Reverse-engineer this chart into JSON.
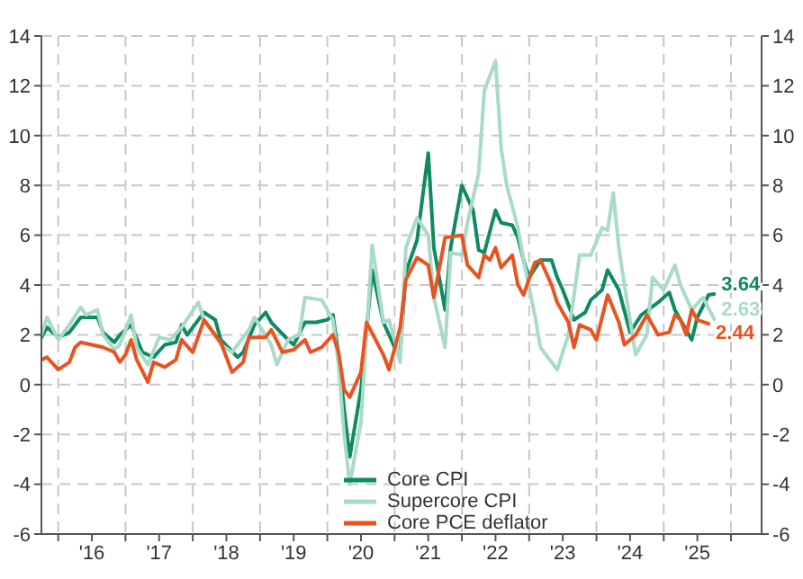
{
  "chart_data": {
    "type": "line",
    "xlim": [
      "2015-10-01",
      "2026-06-15"
    ],
    "xticks": [
      {
        "value": "2016-01-01",
        "label": null
      },
      {
        "value": "2016-07-01",
        "label": "'16"
      },
      {
        "value": "2017-01-01",
        "label": null
      },
      {
        "value": "2017-07-01",
        "label": "'17"
      },
      {
        "value": "2018-01-01",
        "label": null
      },
      {
        "value": "2018-07-01",
        "label": "'18"
      },
      {
        "value": "2019-01-01",
        "label": null
      },
      {
        "value": "2019-07-01",
        "label": "'19"
      },
      {
        "value": "2020-01-01",
        "label": null
      },
      {
        "value": "2020-07-01",
        "label": "'20"
      },
      {
        "value": "2021-01-01",
        "label": null
      },
      {
        "value": "2021-07-01",
        "label": "'21"
      },
      {
        "value": "2022-01-01",
        "label": null
      },
      {
        "value": "2022-07-01",
        "label": "'22"
      },
      {
        "value": "2023-01-01",
        "label": null
      },
      {
        "value": "2023-07-01",
        "label": "'23"
      },
      {
        "value": "2024-01-01",
        "label": null
      },
      {
        "value": "2024-07-01",
        "label": "'24"
      },
      {
        "value": "2025-01-01",
        "label": null
      },
      {
        "value": "2025-07-01",
        "label": "'25"
      },
      {
        "value": "2026-01-01",
        "label": null
      }
    ],
    "ylim": [
      -6,
      14
    ],
    "yticks": [
      -6,
      -4,
      -2,
      0,
      2,
      4,
      6,
      8,
      10,
      12,
      14
    ],
    "y2lim": [
      -6,
      14
    ],
    "y2ticks": [
      -6,
      -4,
      -2,
      0,
      2,
      4,
      6,
      8,
      10,
      12,
      14
    ],
    "grid": true,
    "legend": "bottom right",
    "marker": "none",
    "line_style": "solid",
    "series": [
      {
        "name": "Core CPI",
        "color": "#0f8a62",
        "x": [
          "2015-10",
          "2015-11",
          "2016-01",
          "2016-03",
          "2016-05",
          "2016-08",
          "2016-09",
          "2016-11",
          "2016-12",
          "2017-02",
          "2017-04",
          "2017-06",
          "2017-08",
          "2017-10",
          "2017-11",
          "2017-12",
          "2018-03",
          "2018-05",
          "2018-06",
          "2018-09",
          "2018-10",
          "2018-12",
          "2019-02",
          "2019-03",
          "2019-06",
          "2019-07",
          "2019-09",
          "2019-11",
          "2020-01",
          "2020-02",
          "2020-03",
          "2020-04",
          "2020-05",
          "2020-07",
          "2020-09",
          "2020-11",
          "2021-01",
          "2021-02",
          "2021-03",
          "2021-05",
          "2021-07",
          "2021-08",
          "2021-10",
          "2021-11",
          "2022-01",
          "2022-03",
          "2022-04",
          "2022-05",
          "2022-07",
          "2022-08",
          "2022-10",
          "2022-11",
          "2022-12",
          "2023-01",
          "2023-03",
          "2023-05",
          "2023-06",
          "2023-07",
          "2023-09",
          "2023-11",
          "2023-12",
          "2024-02",
          "2024-03",
          "2024-05",
          "2024-07",
          "2024-09",
          "2024-12",
          "2025-02",
          "2025-03",
          "2025-06",
          "2025-07",
          "2025-09",
          "2025-10"
        ],
        "values": [
          1.9,
          2.3,
          1.9,
          2.1,
          2.7,
          2.7,
          2.1,
          1.7,
          2.0,
          2.4,
          1.3,
          1.1,
          1.6,
          1.7,
          2.4,
          2.0,
          2.9,
          2.6,
          1.8,
          1.1,
          1.3,
          2.4,
          2.9,
          2.5,
          1.8,
          1.6,
          2.5,
          2.5,
          2.6,
          2.8,
          1.2,
          -1.0,
          -2.9,
          -0.2,
          4.6,
          2.5,
          1.5,
          1.3,
          4.5,
          5.8,
          9.3,
          5.5,
          3.0,
          5.5,
          8.0,
          7.0,
          5.4,
          5.3,
          7.0,
          6.5,
          6.4,
          5.9,
          5.0,
          4.3,
          5.0,
          5.0,
          4.3,
          3.8,
          2.6,
          2.9,
          3.4,
          3.8,
          4.6,
          3.8,
          2.1,
          2.8,
          3.3,
          3.7,
          3.0,
          1.8,
          2.7,
          3.6,
          3.64
        ]
      },
      {
        "name": "Supercore CPI",
        "color": "#a9dbc6",
        "x": [
          "2015-10",
          "2015-11",
          "2016-01",
          "2016-03",
          "2016-05",
          "2016-06",
          "2016-08",
          "2016-09",
          "2016-11",
          "2016-12",
          "2017-02",
          "2017-03",
          "2017-05",
          "2017-07",
          "2017-09",
          "2017-11",
          "2018-02",
          "2018-03",
          "2018-06",
          "2018-08",
          "2018-11",
          "2018-12",
          "2019-03",
          "2019-04",
          "2019-06",
          "2019-08",
          "2019-09",
          "2019-12",
          "2020-02",
          "2020-03",
          "2020-04",
          "2020-05",
          "2020-07",
          "2020-09",
          "2020-11",
          "2020-12",
          "2021-01",
          "2021-02",
          "2021-03",
          "2021-05",
          "2021-07",
          "2021-08",
          "2021-10",
          "2021-11",
          "2022-01",
          "2022-02",
          "2022-04",
          "2022-05",
          "2022-07",
          "2022-08",
          "2022-09",
          "2022-11",
          "2022-12",
          "2023-02",
          "2023-03",
          "2023-06",
          "2023-08",
          "2023-10",
          "2023-12",
          "2024-02",
          "2024-03",
          "2024-04",
          "2024-05",
          "2024-06",
          "2024-08",
          "2024-10",
          "2024-11",
          "2025-01",
          "2025-03",
          "2025-04",
          "2025-06",
          "2025-08",
          "2025-10"
        ],
        "values": [
          2.0,
          2.7,
          1.8,
          2.4,
          3.1,
          2.8,
          3.0,
          2.0,
          1.4,
          1.6,
          2.8,
          1.5,
          0.8,
          1.9,
          1.8,
          2.3,
          3.3,
          2.6,
          1.6,
          1.3,
          2.2,
          2.7,
          1.6,
          0.8,
          1.8,
          2.0,
          3.5,
          3.4,
          2.6,
          0.8,
          -2.0,
          -4.0,
          -1.5,
          5.6,
          2.5,
          2.6,
          1.8,
          0.9,
          5.5,
          6.7,
          6.0,
          3.5,
          1.5,
          5.3,
          5.2,
          6.5,
          8.5,
          11.8,
          13.0,
          9.5,
          8.0,
          6.3,
          5.0,
          2.8,
          1.5,
          0.6,
          2.0,
          5.2,
          5.2,
          6.3,
          6.2,
          7.7,
          5.5,
          4.0,
          1.2,
          2.0,
          4.3,
          3.8,
          4.8,
          4.0,
          3.0,
          3.5,
          2.63
        ]
      },
      {
        "name": "Core PCE deflator",
        "color": "#e8531f",
        "x": [
          "2015-10",
          "2015-11",
          "2016-01",
          "2016-03",
          "2016-04",
          "2016-05",
          "2016-07",
          "2016-09",
          "2016-11",
          "2016-12",
          "2017-01",
          "2017-02",
          "2017-03",
          "2017-05",
          "2017-06",
          "2017-08",
          "2017-10",
          "2017-11",
          "2018-01",
          "2018-03",
          "2018-06",
          "2018-08",
          "2018-10",
          "2018-11",
          "2019-02",
          "2019-03",
          "2019-05",
          "2019-07",
          "2019-09",
          "2019-10",
          "2019-12",
          "2020-02",
          "2020-03",
          "2020-04",
          "2020-05",
          "2020-07",
          "2020-08",
          "2020-11",
          "2020-12",
          "2021-02",
          "2021-03",
          "2021-05",
          "2021-07",
          "2021-08",
          "2021-10",
          "2022-01",
          "2022-02",
          "2022-04",
          "2022-05",
          "2022-06",
          "2022-07",
          "2022-08",
          "2022-10",
          "2022-11",
          "2022-12",
          "2023-02",
          "2023-03",
          "2023-05",
          "2023-06",
          "2023-08",
          "2023-09",
          "2023-10",
          "2023-12",
          "2024-01",
          "2024-03",
          "2024-05",
          "2024-06",
          "2024-08",
          "2024-10",
          "2024-12",
          "2025-02",
          "2025-03",
          "2025-04",
          "2025-05",
          "2025-06",
          "2025-07",
          "2025-09"
        ],
        "values": [
          1.0,
          1.1,
          0.6,
          0.9,
          1.5,
          1.7,
          1.6,
          1.5,
          1.3,
          0.9,
          1.2,
          1.8,
          1.0,
          0.1,
          0.9,
          0.7,
          1.0,
          1.8,
          1.3,
          2.6,
          1.7,
          0.5,
          0.9,
          1.9,
          1.9,
          2.2,
          1.3,
          1.4,
          1.8,
          1.3,
          1.5,
          2.0,
          1.3,
          -0.2,
          -0.5,
          0.5,
          2.5,
          1.2,
          0.6,
          2.3,
          4.2,
          5.1,
          4.8,
          3.5,
          5.9,
          6.0,
          4.8,
          4.3,
          5.2,
          5.0,
          5.5,
          4.7,
          5.2,
          4.0,
          3.6,
          4.9,
          5.0,
          4.0,
          3.3,
          2.5,
          1.5,
          2.4,
          2.2,
          1.8,
          3.6,
          2.5,
          1.6,
          2.0,
          2.8,
          2.0,
          2.1,
          2.8,
          2.6,
          2.0,
          3.0,
          2.6,
          2.44
        ]
      }
    ],
    "annotations": [
      {
        "text": "3.64",
        "x": "2025-10",
        "y": 3.64
      },
      {
        "text": "2.63",
        "x": "2025-10",
        "y": 2.63
      },
      {
        "text": "2.44",
        "x": "2025-09",
        "y": 2.44
      }
    ]
  }
}
